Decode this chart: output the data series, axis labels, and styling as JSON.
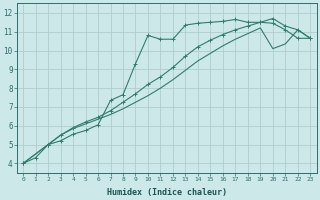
{
  "xlabel": "Humidex (Indice chaleur)",
  "bg_color": "#cde8e8",
  "grid_color": "#b0cccc",
  "line_color": "#2e7d6e",
  "xlim": [
    -0.5,
    23.5
  ],
  "ylim": [
    3.5,
    12.5
  ],
  "xticks": [
    0,
    1,
    2,
    3,
    4,
    5,
    6,
    7,
    8,
    9,
    10,
    11,
    12,
    13,
    14,
    15,
    16,
    17,
    18,
    19,
    20,
    21,
    22,
    23
  ],
  "yticks": [
    4,
    5,
    6,
    7,
    8,
    9,
    10,
    11,
    12
  ],
  "series1_x": [
    0,
    1,
    2,
    3,
    4,
    5,
    6,
    7,
    8,
    9,
    10,
    11,
    12,
    13,
    14,
    15,
    16,
    17,
    18,
    19,
    20,
    21,
    22,
    23
  ],
  "series1_y": [
    4.0,
    4.3,
    5.0,
    5.2,
    5.55,
    5.75,
    6.05,
    7.35,
    7.65,
    9.3,
    10.8,
    10.6,
    10.6,
    11.35,
    11.45,
    11.5,
    11.55,
    11.65,
    11.5,
    11.5,
    11.45,
    11.1,
    10.65,
    10.65
  ],
  "series2_x": [
    0,
    2,
    3,
    4,
    5,
    6,
    7,
    8,
    9,
    10,
    11,
    12,
    13,
    14,
    15,
    16,
    17,
    18,
    19,
    20,
    21,
    22,
    23
  ],
  "series2_y": [
    4.0,
    5.0,
    5.5,
    5.9,
    6.2,
    6.45,
    6.8,
    7.25,
    7.7,
    8.2,
    8.6,
    9.1,
    9.7,
    10.2,
    10.55,
    10.85,
    11.1,
    11.3,
    11.5,
    11.7,
    11.3,
    11.1,
    10.65
  ],
  "series3_x": [
    0,
    2,
    3,
    4,
    5,
    6,
    7,
    8,
    9,
    10,
    11,
    12,
    13,
    14,
    15,
    16,
    17,
    18,
    19,
    20,
    21,
    22,
    23
  ],
  "series3_y": [
    4.0,
    5.0,
    5.5,
    5.85,
    6.1,
    6.35,
    6.6,
    6.9,
    7.25,
    7.6,
    8.0,
    8.45,
    8.95,
    9.45,
    9.85,
    10.25,
    10.6,
    10.9,
    11.2,
    10.1,
    10.35,
    11.1,
    10.65
  ]
}
